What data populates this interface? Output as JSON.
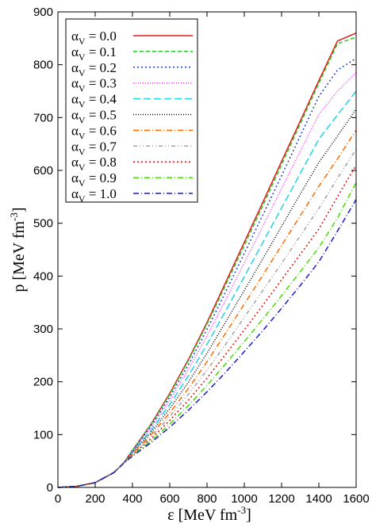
{
  "chart_data": {
    "type": "line",
    "xlabel": "ε  [MeV fm",
    "xlabel_sup": "-3",
    "xlabel_close": "]",
    "ylabel": "p  [MeV fm",
    "ylabel_sup": "-3",
    "ylabel_close": "]",
    "xlim": [
      0,
      1600
    ],
    "ylim": [
      0,
      900
    ],
    "xticks": [
      0,
      200,
      400,
      600,
      800,
      1000,
      1200,
      1400,
      1600
    ],
    "yticks": [
      0,
      100,
      200,
      300,
      400,
      500,
      600,
      700,
      800,
      900
    ],
    "grid": false,
    "legend_position": "top-left",
    "x": [
      0,
      100,
      200,
      300,
      350,
      400,
      500,
      600,
      700,
      800,
      900,
      1000,
      1100,
      1200,
      1300,
      1400,
      1500,
      1600
    ],
    "series": [
      {
        "name": "αV = 0.0",
        "label_main": "α",
        "label_sub": "V",
        "label_rest": " = 0.0",
        "color": "#e41a1c",
        "dash": "",
        "values": [
          0,
          2,
          9,
          28,
          45,
          70,
          120,
          178,
          242,
          312,
          388,
          464,
          540,
          617,
          693,
          770,
          845,
          860
        ]
      },
      {
        "name": "αV = 0.1",
        "label_main": "α",
        "label_sub": "V",
        "label_rest": " = 0.1",
        "color": "#22cc22",
        "dash": "5,3",
        "values": [
          0,
          2,
          9,
          28,
          45,
          70,
          119,
          176,
          240,
          309,
          383,
          458,
          534,
          611,
          688,
          765,
          840,
          852
        ]
      },
      {
        "name": "αV = 0.2",
        "label_main": "α",
        "label_sub": "V",
        "label_rest": " = 0.2",
        "color": "#1f3fcc",
        "dash": "2,3",
        "values": [
          0,
          2,
          9,
          28,
          45,
          69,
          116,
          171,
          232,
          299,
          370,
          443,
          516,
          590,
          665,
          740,
          790,
          812
        ]
      },
      {
        "name": "αV = 0.3",
        "label_main": "α",
        "label_sub": "V",
        "label_rest": " = 0.3",
        "color": "#ff33ff",
        "dash": "1,2",
        "values": [
          0,
          2,
          9,
          28,
          45,
          68,
          113,
          165,
          223,
          287,
          355,
          425,
          495,
          566,
          636,
          706,
          750,
          785
        ]
      },
      {
        "name": "αV = 0.4",
        "label_main": "α",
        "label_sub": "V",
        "label_rest": " = 0.4",
        "color": "#22d3e6",
        "dash": "9,4",
        "values": [
          0,
          2,
          9,
          28,
          45,
          67,
          108,
          157,
          211,
          271,
          334,
          399,
          464,
          529,
          594,
          659,
          705,
          750
        ]
      },
      {
        "name": "αV = 0.5",
        "label_main": "α",
        "label_sub": "V",
        "label_rest": " = 0.5",
        "color": "#000000",
        "dash": "1,2",
        "values": [
          0,
          2,
          9,
          28,
          45,
          66,
          104,
          149,
          199,
          254,
          313,
          373,
          433,
          494,
          555,
          615,
          665,
          716
        ]
      },
      {
        "name": "αV = 0.6",
        "label_main": "α",
        "label_sub": "V",
        "label_rest": " = 0.6",
        "color": "#ff6a00",
        "dash": "7,3,1,3",
        "values": [
          0,
          2,
          9,
          28,
          45,
          64,
          100,
          141,
          187,
          238,
          292,
          347,
          402,
          458,
          514,
          570,
          622,
          676
        ]
      },
      {
        "name": "αV = 0.7",
        "label_main": "α",
        "label_sub": "V",
        "label_rest": " = 0.7",
        "color": "#a0a0a0",
        "dash": "5,3,1,3,1,3",
        "values": [
          0,
          2,
          9,
          28,
          45,
          63,
          96,
          134,
          176,
          222,
          271,
          322,
          373,
          424,
          476,
          528,
          585,
          640
        ]
      },
      {
        "name": "αV = 0.8",
        "label_main": "α",
        "label_sub": "V",
        "label_rest": " = 0.8",
        "color": "#dd1111",
        "dash": "2,3",
        "values": [
          0,
          2,
          9,
          28,
          45,
          62,
          92,
          127,
          165,
          207,
          252,
          298,
          345,
          393,
          441,
          489,
          550,
          610
        ]
      },
      {
        "name": "αV = 0.9",
        "label_main": "α",
        "label_sub": "V",
        "label_rest": " = 0.9",
        "color": "#44dd00",
        "dash": "7,3,1,3",
        "values": [
          0,
          2,
          9,
          28,
          45,
          60,
          88,
          120,
          155,
          193,
          234,
          276,
          319,
          363,
          408,
          454,
          510,
          577
        ]
      },
      {
        "name": "αV = 1.0",
        "label_main": "α",
        "label_sub": "V",
        "label_rest": " = 1.0",
        "color": "#1a1acc",
        "dash": "7,3,1,3",
        "values": [
          0,
          2,
          9,
          28,
          45,
          59,
          85,
          114,
          146,
          181,
          218,
          257,
          297,
          339,
          382,
          427,
          485,
          545
        ]
      }
    ]
  }
}
